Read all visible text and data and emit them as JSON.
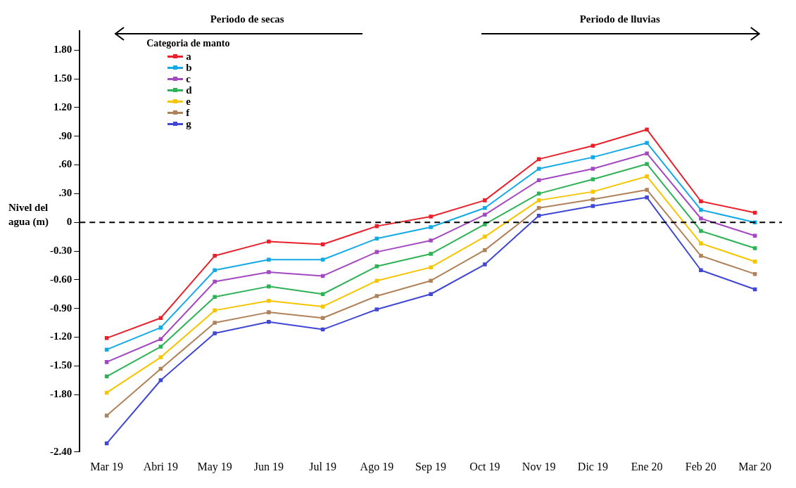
{
  "chart_data": {
    "type": "line",
    "ylabel": "Nivel del agua (m)",
    "legend_title": "Categoria de manto",
    "legend": "top left",
    "marker": "square",
    "line_style": "solid",
    "grid": false,
    "annotations": [
      "Periodo de secas",
      "Periodo de lluvias"
    ],
    "categories": [
      "Mar 19",
      "Abri 19",
      "May 19",
      "Jun 19",
      "Jul 19",
      "Ago 19",
      "Sep 19",
      "Oct 19",
      "Nov 19",
      "Dic 19",
      "Ene 20",
      "Feb 20",
      "Mar 20"
    ],
    "ylim": [
      -2.4,
      2.0
    ],
    "yticks": [
      {
        "value": 1.8,
        "label": "1.80"
      },
      {
        "value": 1.5,
        "label": "1.50"
      },
      {
        "value": 1.2,
        "label": "1.20"
      },
      {
        "value": 0.9,
        "label": ".90"
      },
      {
        "value": 0.6,
        "label": ".60"
      },
      {
        "value": 0.3,
        "label": ".30"
      },
      0,
      {
        "value": -0.3,
        "label": "-0.30"
      },
      {
        "value": -0.6,
        "label": "-0.60"
      },
      {
        "value": -0.9,
        "label": "-0.90"
      },
      {
        "value": -1.2,
        "label": "-1.20"
      },
      {
        "value": -1.5,
        "label": "-1.50"
      },
      {
        "value": -1.8,
        "label": "-1.80"
      },
      {
        "value": -2.4,
        "label": "-2.40"
      }
    ],
    "ref_lines": [
      {
        "axis": "y",
        "value": 0,
        "color": "#000000",
        "line_style": "dashed"
      }
    ],
    "series": [
      {
        "name": "a",
        "color": "#e8212b",
        "values": [
          -1.21,
          -1.0,
          -0.35,
          -0.2,
          -0.23,
          -0.04,
          0.06,
          0.23,
          0.66,
          0.8,
          0.97,
          0.22,
          0.1
        ]
      },
      {
        "name": "b",
        "color": "#12a9e6",
        "values": [
          -1.33,
          -1.1,
          -0.5,
          -0.39,
          -0.39,
          -0.17,
          -0.05,
          0.15,
          0.56,
          0.68,
          0.83,
          0.13,
          0.0
        ]
      },
      {
        "name": "c",
        "color": "#a349c0",
        "values": [
          -1.46,
          -1.22,
          -0.62,
          -0.52,
          -0.56,
          -0.31,
          -0.19,
          0.08,
          0.44,
          0.56,
          0.72,
          0.04,
          -0.14
        ]
      },
      {
        "name": "d",
        "color": "#2db256",
        "values": [
          -1.61,
          -1.3,
          -0.78,
          -0.67,
          -0.75,
          -0.46,
          -0.33,
          -0.02,
          0.3,
          0.45,
          0.61,
          -0.09,
          -0.27
        ]
      },
      {
        "name": "e",
        "color": "#f6c500",
        "values": [
          -1.78,
          -1.41,
          -0.92,
          -0.82,
          -0.88,
          -0.61,
          -0.47,
          -0.15,
          0.23,
          0.32,
          0.48,
          -0.22,
          -0.41
        ]
      },
      {
        "name": "f",
        "color": "#b0825a",
        "values": [
          -2.02,
          -1.53,
          -1.05,
          -0.94,
          -1.0,
          -0.77,
          -0.61,
          -0.29,
          0.15,
          0.24,
          0.34,
          -0.35,
          -0.54
        ]
      },
      {
        "name": "g",
        "color": "#4047d3",
        "values": [
          -2.31,
          -1.65,
          -1.16,
          -1.04,
          -1.12,
          -0.91,
          -0.75,
          -0.44,
          0.07,
          0.17,
          0.26,
          -0.5,
          -0.7
        ]
      }
    ]
  }
}
